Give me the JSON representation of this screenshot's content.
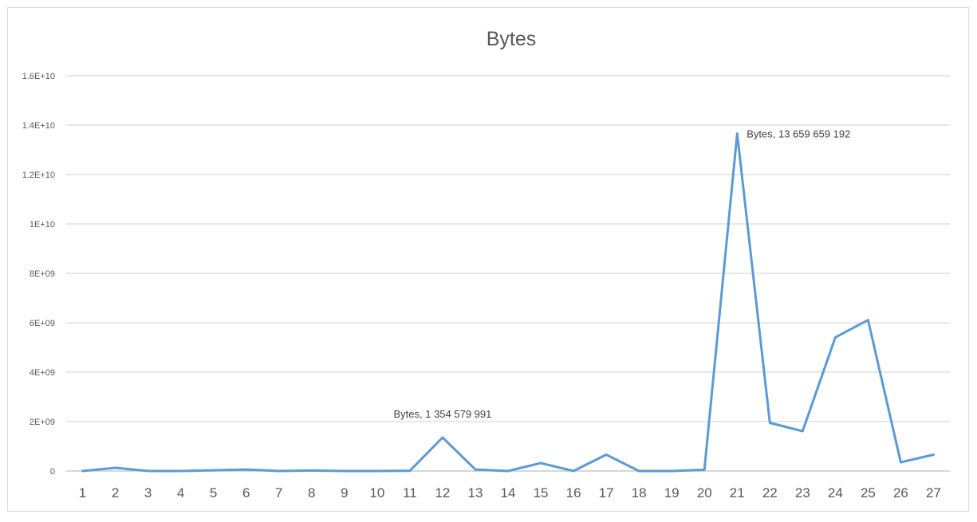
{
  "chart_data": {
    "type": "line",
    "title": "Bytes",
    "xlabel": "",
    "ylabel": "",
    "categories": [
      "1",
      "2",
      "3",
      "4",
      "5",
      "6",
      "7",
      "8",
      "9",
      "10",
      "11",
      "12",
      "13",
      "14",
      "15",
      "16",
      "17",
      "18",
      "19",
      "20",
      "21",
      "22",
      "23",
      "24",
      "25",
      "26",
      "27"
    ],
    "series": [
      {
        "name": "Bytes",
        "color": "#5b9bd5",
        "values": [
          0,
          130000000,
          0,
          0,
          30000000,
          60000000,
          0,
          20000000,
          0,
          0,
          10000000,
          1354579991,
          60000000,
          0,
          320000000,
          0,
          660000000,
          0,
          0,
          50000000,
          13659659192,
          1950000000,
          1610000000,
          5410000000,
          6110000000,
          350000000,
          660000000
        ]
      }
    ],
    "ylim": [
      0,
      16000000000
    ],
    "y_ticks": [
      {
        "value": 0,
        "label": "0"
      },
      {
        "value": 2000000000,
        "label": "2E+09"
      },
      {
        "value": 4000000000,
        "label": "4E+09"
      },
      {
        "value": 6000000000,
        "label": "6E+09"
      },
      {
        "value": 8000000000,
        "label": "8E+09"
      },
      {
        "value": 10000000000,
        "label": "1E+10"
      },
      {
        "value": 12000000000,
        "label": "1.2E+10"
      },
      {
        "value": 14000000000,
        "label": "1.4E+10"
      },
      {
        "value": 16000000000,
        "label": "1.6E+10"
      }
    ],
    "grid": true,
    "legend": "none",
    "annotations": [
      {
        "category": "12",
        "text": "Bytes, 1 354 579 991",
        "placement": "above"
      },
      {
        "category": "21",
        "text": "Bytes, 13 659 659 192",
        "placement": "right"
      }
    ]
  }
}
